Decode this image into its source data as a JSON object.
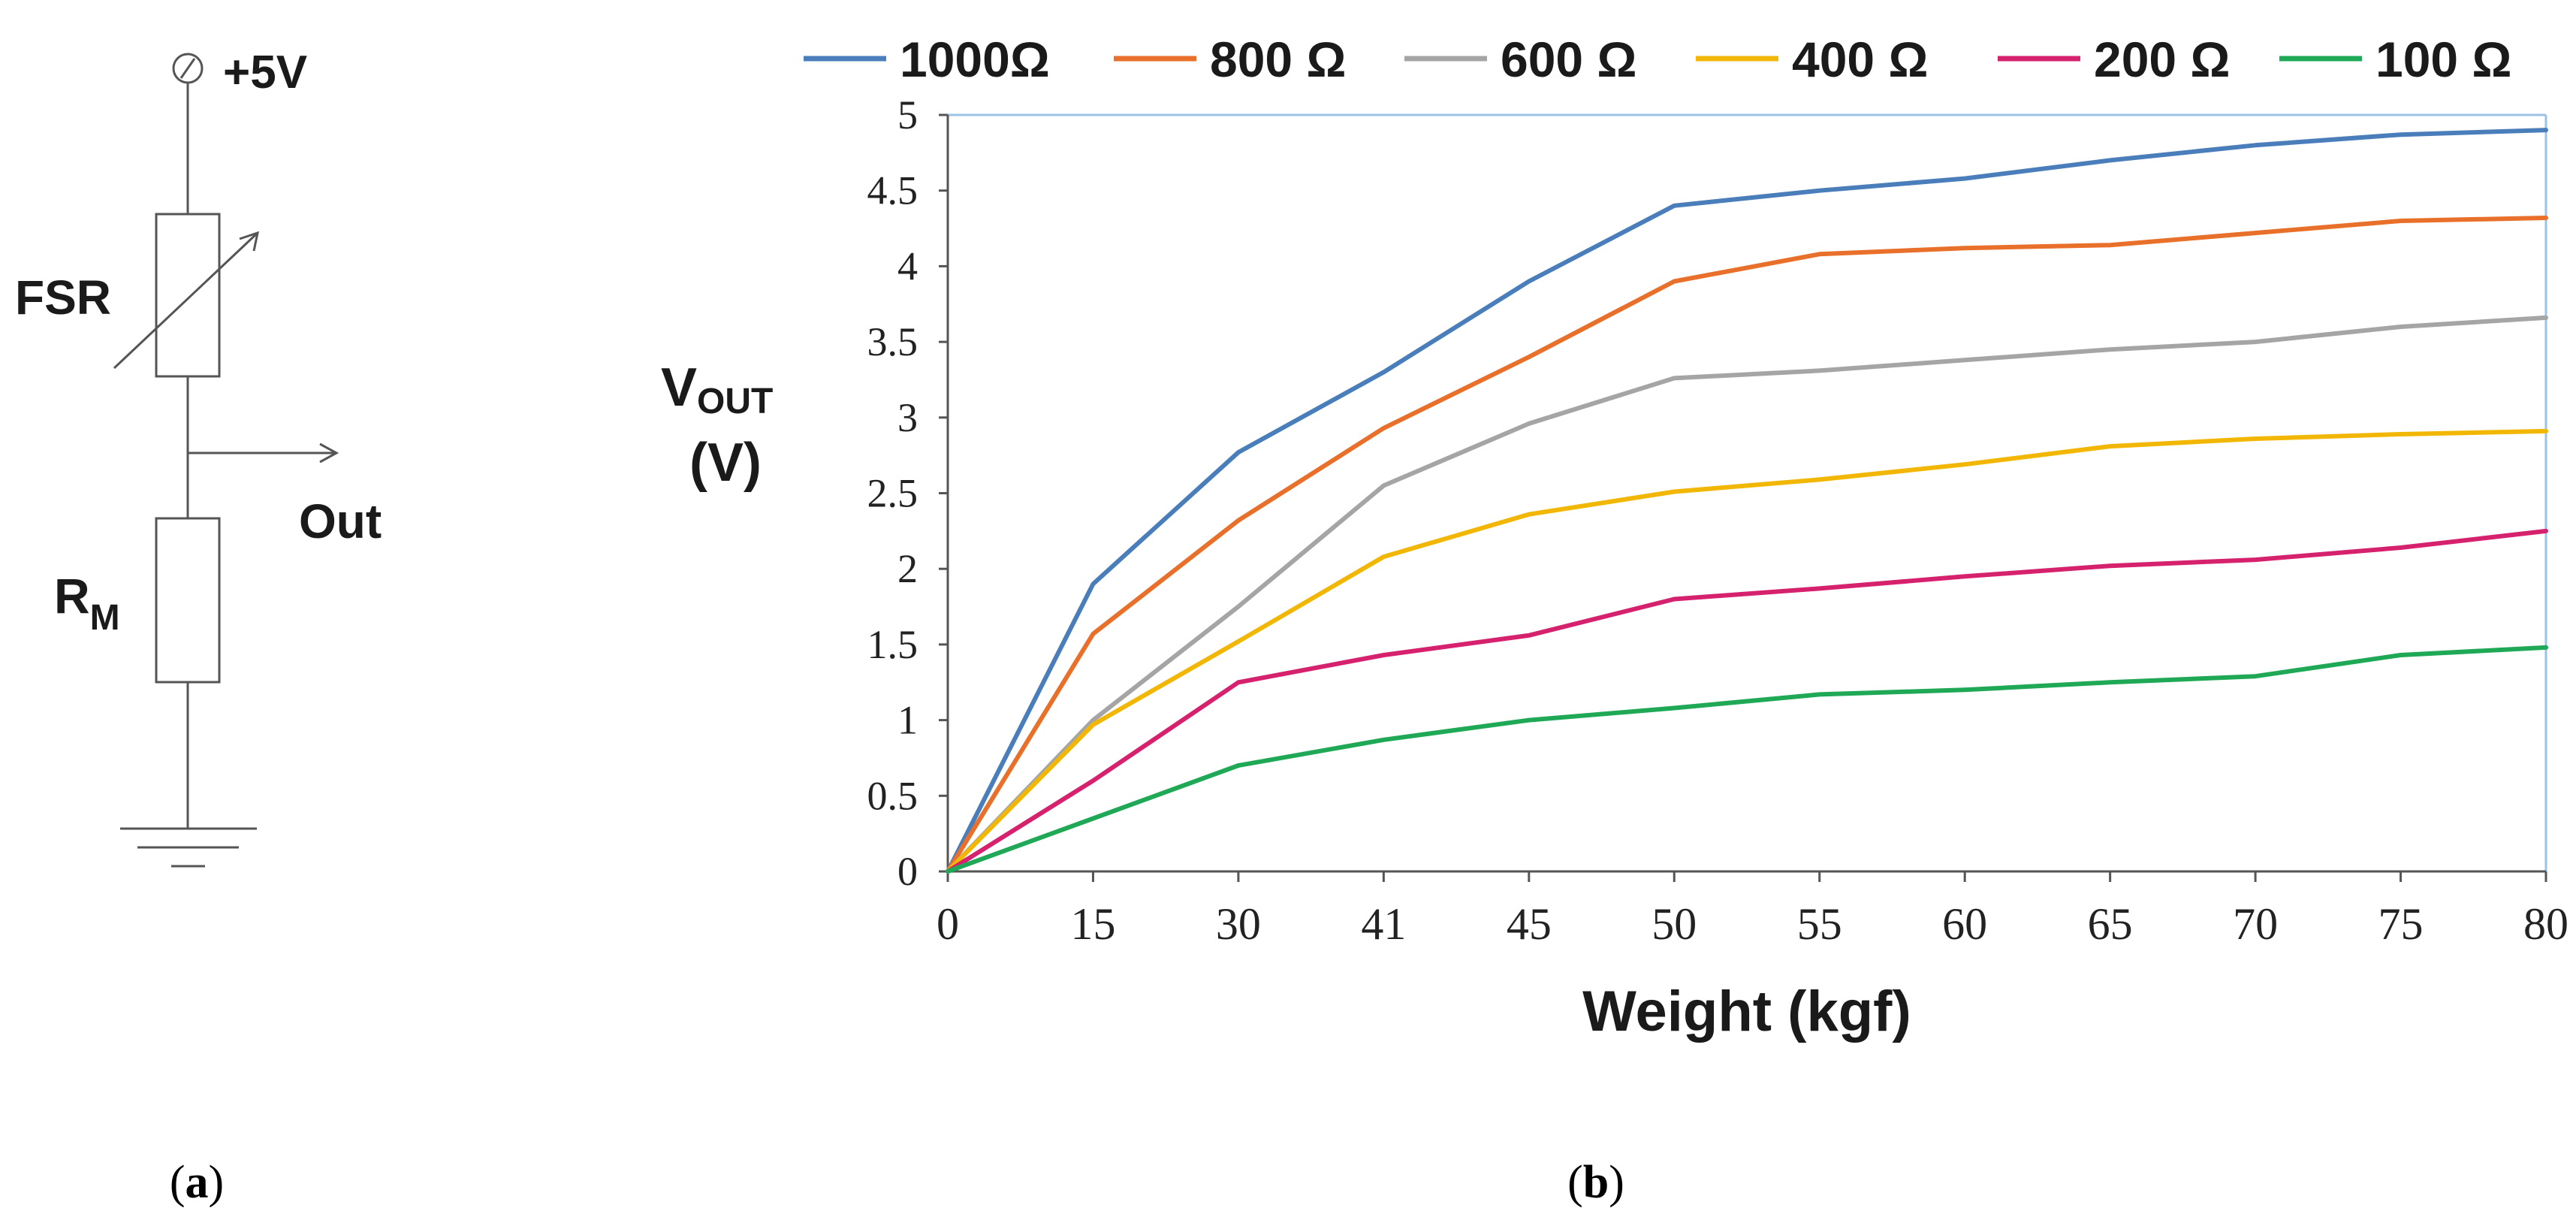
{
  "panel_a": {
    "label_open": "(",
    "label_letter": "a",
    "label_close": ")",
    "supply_label": "+5V",
    "fsr_label": "FSR",
    "rm_label_main": "R",
    "rm_label_sub": "M",
    "out_label": "Out"
  },
  "panel_b": {
    "label_open": "(",
    "label_letter": "b",
    "label_close": ")"
  },
  "chart_data": {
    "type": "line",
    "title": "",
    "xlabel": "Weight (kgf)",
    "ylabel_main": "V",
    "ylabel_sub": "OUT",
    "ylabel_unit": "(V)",
    "categories": [
      "0",
      "15",
      "30",
      "41",
      "45",
      "50",
      "55",
      "60",
      "65",
      "70",
      "75",
      "80"
    ],
    "ylim": [
      0,
      5
    ],
    "yticks": [
      "0",
      "0.5",
      "1",
      "1.5",
      "2",
      "2.5",
      "3",
      "3.5",
      "4",
      "4.5",
      "5"
    ],
    "legend_position": "top",
    "series": [
      {
        "name": "1000Ω",
        "color": "#4a7ebb",
        "values": [
          0,
          1.9,
          2.77,
          3.3,
          3.9,
          4.4,
          4.5,
          4.58,
          4.7,
          4.8,
          4.87,
          4.9
        ]
      },
      {
        "name": "800 Ω",
        "color": "#e8702a",
        "values": [
          0,
          1.57,
          2.32,
          2.93,
          3.4,
          3.9,
          4.08,
          4.12,
          4.14,
          4.22,
          4.3,
          4.32
        ]
      },
      {
        "name": "600 Ω",
        "color": "#a5a5a5",
        "values": [
          0,
          1.0,
          1.75,
          2.55,
          2.96,
          3.26,
          3.31,
          3.38,
          3.45,
          3.5,
          3.6,
          3.66
        ]
      },
      {
        "name": "400 Ω",
        "color": "#f2b705",
        "values": [
          0,
          0.97,
          1.52,
          2.08,
          2.36,
          2.51,
          2.59,
          2.69,
          2.81,
          2.86,
          2.89,
          2.91
        ]
      },
      {
        "name": "200 Ω",
        "color": "#d6226e",
        "values": [
          0,
          0.6,
          1.25,
          1.43,
          1.56,
          1.8,
          1.87,
          1.95,
          2.02,
          2.06,
          2.14,
          2.25
        ]
      },
      {
        "name": "100 Ω",
        "color": "#1fa956",
        "values": [
          0,
          0.35,
          0.7,
          0.87,
          1.0,
          1.08,
          1.17,
          1.2,
          1.25,
          1.29,
          1.43,
          1.48
        ]
      }
    ]
  }
}
